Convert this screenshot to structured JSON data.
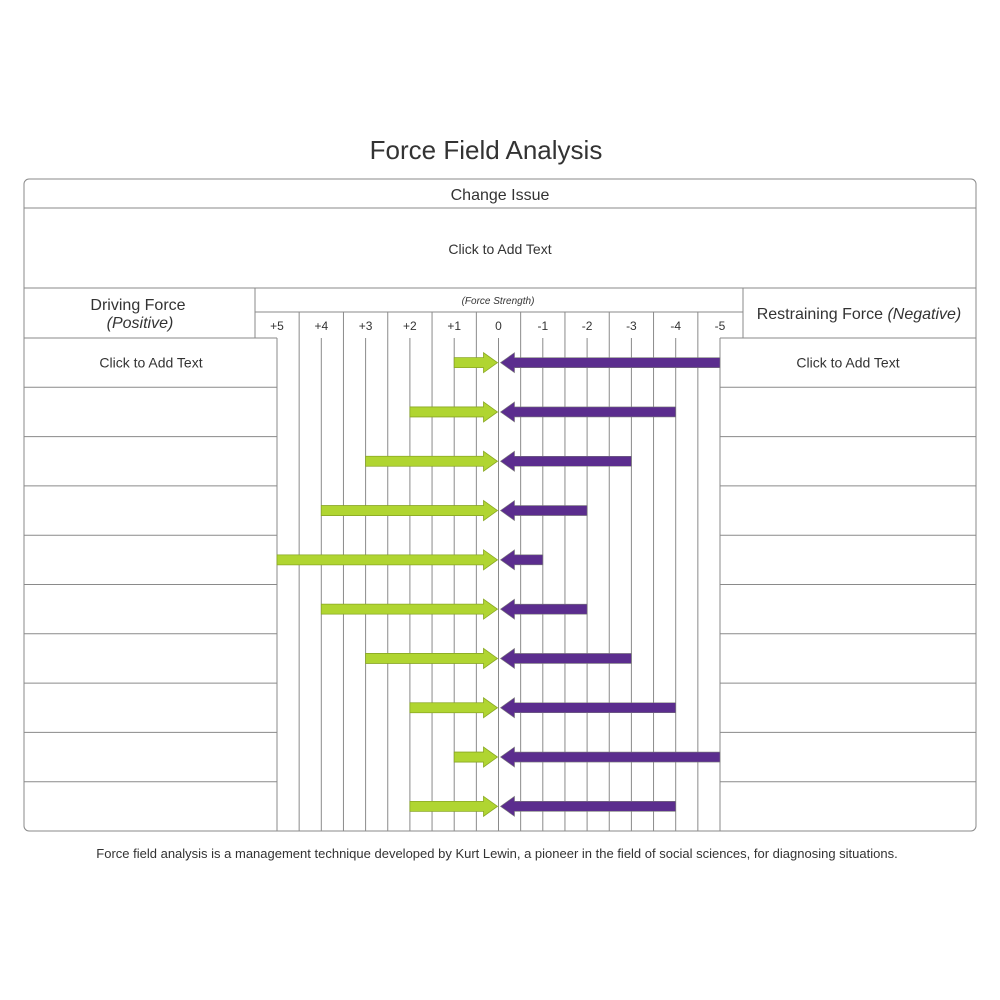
{
  "title": "Force Field Analysis",
  "header": {
    "change_issue": "Change Issue",
    "change_issue_text": "Click to Add Text",
    "driving_force_label": "Driving Force",
    "driving_force_sub": "(Positive)",
    "restraining_force_label": "Restraining Force",
    "restraining_force_sub": "(Negative)",
    "force_strength_label": "(Force Strength)"
  },
  "scale": [
    "+5",
    "+4",
    "+3",
    "+2",
    "+1",
    "0",
    "-1",
    "-2",
    "-3",
    "-4",
    "-5"
  ],
  "rows": [
    {
      "driving_text": "Click to Add Text",
      "restraining_text": "Click to Add Text",
      "positive": 1,
      "negative": 5
    },
    {
      "driving_text": "",
      "restraining_text": "",
      "positive": 2,
      "negative": 4
    },
    {
      "driving_text": "",
      "restraining_text": "",
      "positive": 3,
      "negative": 3
    },
    {
      "driving_text": "",
      "restraining_text": "",
      "positive": 4,
      "negative": 2
    },
    {
      "driving_text": "",
      "restraining_text": "",
      "positive": 5,
      "negative": 1
    },
    {
      "driving_text": "",
      "restraining_text": "",
      "positive": 4,
      "negative": 2
    },
    {
      "driving_text": "",
      "restraining_text": "",
      "positive": 3,
      "negative": 3
    },
    {
      "driving_text": "",
      "restraining_text": "",
      "positive": 2,
      "negative": 4
    },
    {
      "driving_text": "",
      "restraining_text": "",
      "positive": 1,
      "negative": 5
    },
    {
      "driving_text": "",
      "restraining_text": "",
      "positive": 2,
      "negative": 4
    }
  ],
  "colors": {
    "positive_arrow": "#b0d531",
    "negative_arrow": "#5b2d8e",
    "grid_line": "#8a8a8a"
  },
  "footnote": "Force field analysis is a management technique developed by Kurt Lewin, a pioneer in the field of social sciences, for diagnosing situations."
}
